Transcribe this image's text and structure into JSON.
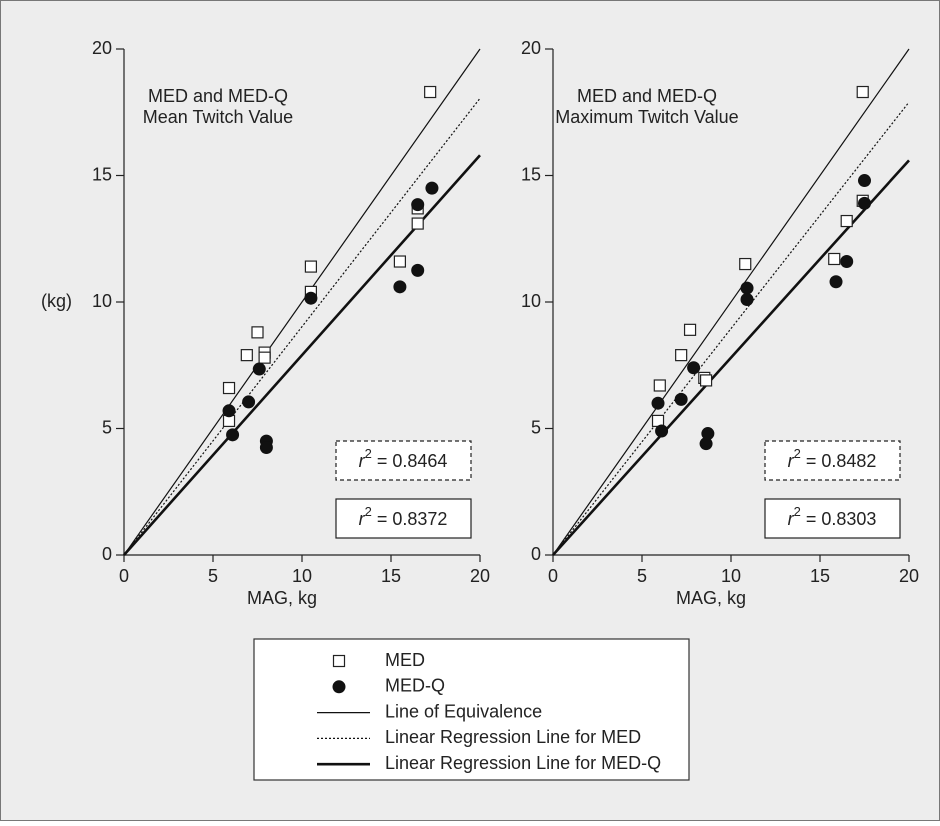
{
  "chart_data": [
    {
      "type": "scatter",
      "annotations": [
        "MED and MED-Q",
        "Mean Twitch Value"
      ],
      "ylabel": "(kg)",
      "xlabel": "MAG, kg",
      "xlim": [
        0,
        20
      ],
      "ylim": [
        0,
        20
      ],
      "xticks": [
        0,
        5,
        10,
        15,
        20
      ],
      "yticks": [
        0,
        5,
        10,
        15,
        20
      ],
      "series": [
        {
          "name": "MED",
          "style": "square",
          "x": [
            5.9,
            5.9,
            6.9,
            7.5,
            7.9,
            7.9,
            10.5,
            10.5,
            15.5,
            16.5,
            16.5,
            17.2
          ],
          "values": [
            6.6,
            5.3,
            7.9,
            8.8,
            8.0,
            7.8,
            11.4,
            10.4,
            11.6,
            13.7,
            13.1,
            18.3
          ]
        },
        {
          "name": "MED-Q",
          "style": "circle",
          "x": [
            5.9,
            6.1,
            7.0,
            7.6,
            8.0,
            8.0,
            10.5,
            15.5,
            16.5,
            16.5,
            17.3
          ],
          "values": [
            5.7,
            4.75,
            6.05,
            7.35,
            4.5,
            4.25,
            10.15,
            10.6,
            13.85,
            11.25,
            14.5
          ]
        },
        {
          "name": "Line of Equivalence",
          "style": "thin",
          "x": [
            0,
            20
          ],
          "values": [
            0,
            20
          ]
        },
        {
          "name": "Linear Regression Line for MED",
          "style": "dotted",
          "x": [
            0,
            20
          ],
          "values": [
            0,
            18.05
          ]
        },
        {
          "name": "Linear Regression Line for MED-Q",
          "style": "thick",
          "x": [
            0,
            20
          ],
          "values": [
            0,
            15.8
          ]
        }
      ],
      "r2_boxes": [
        {
          "prefix": "r",
          "sup": "2",
          "text": " = 0.8464",
          "style": "dashed"
        },
        {
          "prefix": "r",
          "sup": "2",
          "text": " = 0.8372",
          "style": "solid"
        }
      ]
    },
    {
      "type": "scatter",
      "annotations": [
        "MED and MED-Q",
        "Maximum Twitch Value"
      ],
      "xlabel": "MAG, kg",
      "xlim": [
        0,
        20
      ],
      "ylim": [
        0,
        20
      ],
      "xticks": [
        0,
        5,
        10,
        15,
        20
      ],
      "yticks": [
        0,
        5,
        10,
        15,
        20
      ],
      "series": [
        {
          "name": "MED",
          "style": "square",
          "x": [
            6.0,
            5.9,
            7.2,
            7.7,
            8.5,
            8.6,
            10.8,
            15.8,
            16.5,
            17.4,
            17.4
          ],
          "values": [
            6.7,
            5.3,
            7.9,
            8.9,
            7.0,
            6.9,
            11.5,
            11.7,
            13.2,
            18.3,
            14.0
          ]
        },
        {
          "name": "MED-Q",
          "style": "circle",
          "x": [
            5.9,
            6.1,
            7.2,
            7.9,
            8.6,
            8.7,
            10.9,
            10.9,
            15.9,
            16.5,
            17.5,
            17.5
          ],
          "values": [
            6.0,
            4.9,
            6.15,
            7.4,
            4.4,
            4.8,
            10.55,
            10.1,
            10.8,
            11.6,
            14.8,
            13.9
          ]
        },
        {
          "name": "Line of Equivalence",
          "style": "thin",
          "x": [
            0,
            20
          ],
          "values": [
            0,
            20
          ]
        },
        {
          "name": "Linear Regression Line for MED",
          "style": "dotted",
          "x": [
            0,
            20
          ],
          "values": [
            0,
            17.9
          ]
        },
        {
          "name": "Linear Regression Line for MED-Q",
          "style": "thick",
          "x": [
            0,
            20
          ],
          "values": [
            0,
            15.6
          ]
        }
      ],
      "r2_boxes": [
        {
          "prefix": "r",
          "sup": "2",
          "text": " = 0.8482",
          "style": "dashed"
        },
        {
          "prefix": "r",
          "sup": "2",
          "text": " = 0.8303",
          "style": "solid"
        }
      ]
    }
  ]
}
